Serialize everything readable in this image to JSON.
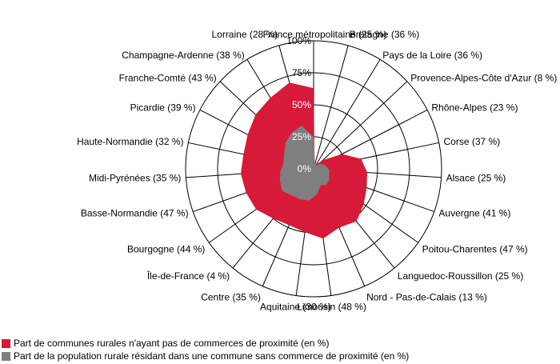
{
  "chart_data": {
    "type": "radar",
    "title": "",
    "r_ticks": [
      "0%",
      "25%",
      "50%",
      "75%",
      "100%"
    ],
    "r_range": [
      0,
      100
    ],
    "categories": [
      "France métropolitaine (25 %)",
      "Bretagne (36 %)",
      "Pays de la Loire (36 %)",
      "Provence-Alpes-Côte d'Azur (8 %)",
      "Rhône-Alpes (23 %)",
      "Corse (37 %)",
      "Alsace  (25 %)",
      "Auvergne  (41 %)",
      "Poitou-Charentes  (47 %)",
      "Languedoc-Roussillon (25 %)",
      "Nord - Pas-de-Calais (13 %)",
      "Limousin (48 %)",
      "Aquitaine (30 %)",
      "Centre (35 %)",
      "Île-de-France (4 %)",
      "Bourgogne (44 %)",
      "Basse-Normandie (47 %)",
      "Midi-Pyrénées (35 %)",
      "Haute-Normandie (32 %)",
      "Picardie (39 %)",
      "Franche-Comté (43 %)",
      "Champagne-Ardenne (38 %)",
      "Lorraine (28 %)"
    ],
    "series": [
      {
        "name": "Part de communes rurales n'ayant pas de commerces de proximité (en %)",
        "color": "#d7193a",
        "values": [
          63,
          3,
          4,
          10,
          25,
          38,
          42,
          44,
          48,
          53,
          50,
          55,
          50,
          48,
          50,
          55,
          56,
          57,
          56,
          58,
          62,
          65,
          70
        ]
      },
      {
        "name": "Part de la population rurale résidant dans une commune sans commerce de proximité (en %)",
        "color": "#7f7f7f",
        "values": [
          25,
          4,
          3,
          5,
          8,
          10,
          12,
          13,
          15,
          16,
          14,
          20,
          25,
          26,
          27,
          30,
          28,
          26,
          24,
          26,
          30,
          33,
          35
        ]
      }
    ]
  }
}
